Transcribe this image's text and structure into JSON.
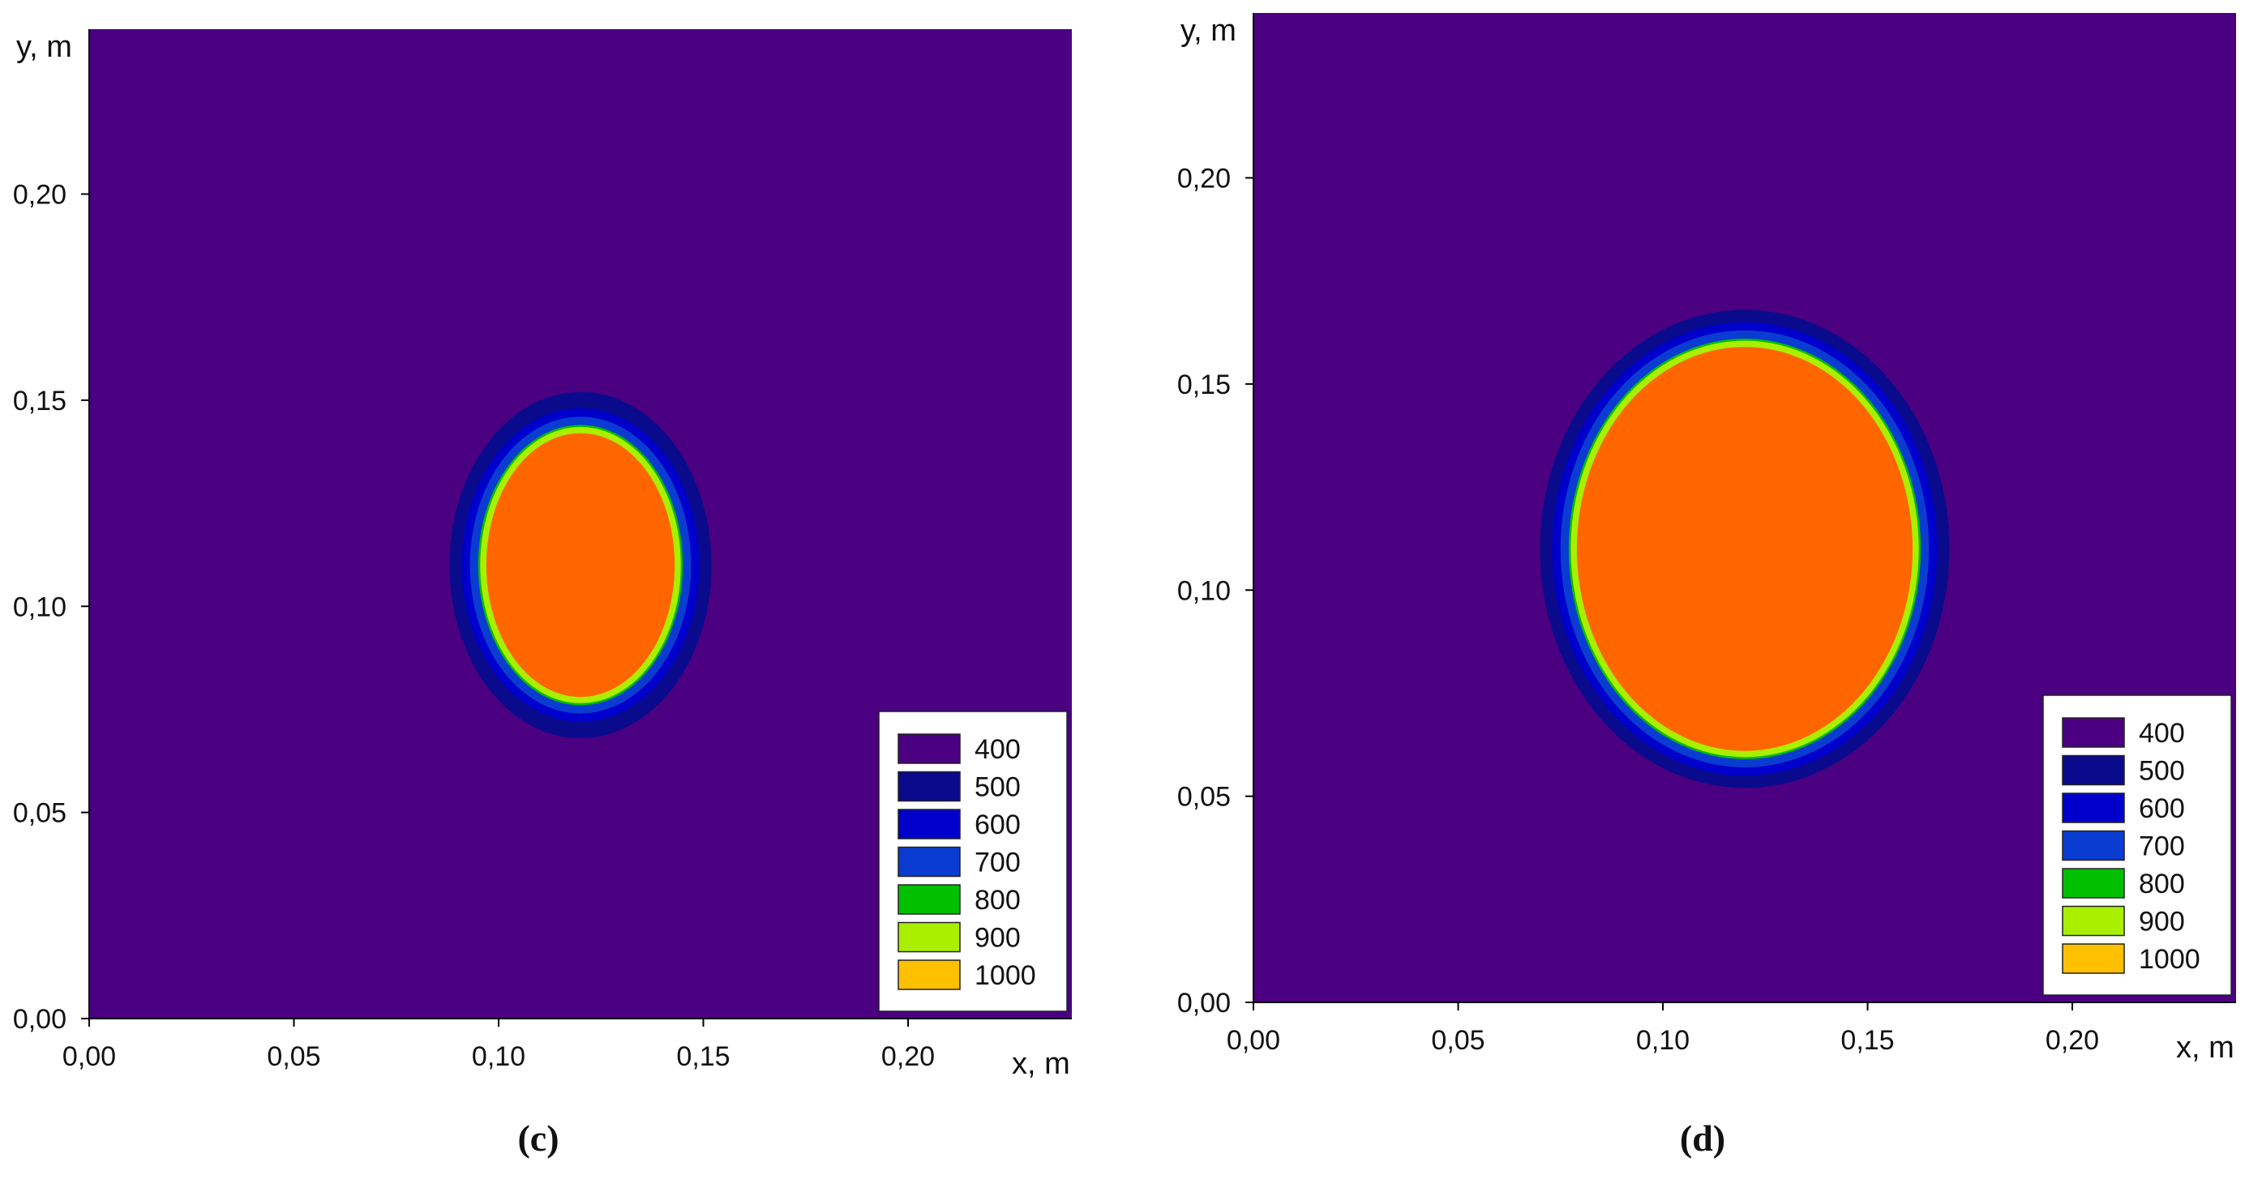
{
  "chart_data": [
    {
      "type": "heatmap",
      "panel_label": "(c)",
      "xlabel": "x, m",
      "ylabel": "y, m",
      "xlim": [
        0,
        0.24
      ],
      "ylim": [
        0,
        0.24
      ],
      "x_ticks": [
        "0,00",
        "0,05",
        "0,10",
        "0,15",
        "0,20"
      ],
      "y_ticks": [
        "0,00",
        "0,05",
        "0,10",
        "0,15",
        "0,20"
      ],
      "background_level": 400,
      "center": [
        0.12,
        0.11
      ],
      "contours": [
        {
          "level": 500,
          "semi_axis_x": 0.032,
          "semi_axis_y": 0.042
        },
        {
          "level": 600,
          "semi_axis_x": 0.029,
          "semi_axis_y": 0.038
        },
        {
          "level": 700,
          "semi_axis_x": 0.027,
          "semi_axis_y": 0.036
        },
        {
          "level": 800,
          "semi_axis_x": 0.025,
          "semi_axis_y": 0.034
        },
        {
          "level": 900,
          "semi_axis_x": 0.0245,
          "semi_axis_y": 0.0335
        },
        {
          "level": 1000,
          "semi_axis_x": 0.023,
          "semi_axis_y": 0.032,
          "color": "#ff6600"
        }
      ],
      "legend": {
        "placement": "bottom-right",
        "entries": [
          {
            "label": "400",
            "color": "#4b0082"
          },
          {
            "label": "500",
            "color": "#0a0a8c"
          },
          {
            "label": "600",
            "color": "#0000cc"
          },
          {
            "label": "700",
            "color": "#0a3cd2"
          },
          {
            "label": "800",
            "color": "#00c000"
          },
          {
            "label": "900",
            "color": "#aaee00"
          },
          {
            "label": "1000",
            "color": "#ffc000"
          }
        ]
      }
    },
    {
      "type": "heatmap",
      "panel_label": "(d)",
      "xlabel": "x, m",
      "ylabel": "y, m",
      "xlim": [
        0,
        0.24
      ],
      "ylim": [
        0,
        0.24
      ],
      "x_ticks": [
        "0,00",
        "0,05",
        "0,10",
        "0,15",
        "0,20"
      ],
      "y_ticks": [
        "0,00",
        "0,05",
        "0,10",
        "0,15",
        "0,20"
      ],
      "background_level": 400,
      "center": [
        0.12,
        0.11
      ],
      "contours": [
        {
          "level": 500,
          "semi_axis_x": 0.05,
          "semi_axis_y": 0.058
        },
        {
          "level": 600,
          "semi_axis_x": 0.047,
          "semi_axis_y": 0.055
        },
        {
          "level": 700,
          "semi_axis_x": 0.045,
          "semi_axis_y": 0.053
        },
        {
          "level": 800,
          "semi_axis_x": 0.043,
          "semi_axis_y": 0.051
        },
        {
          "level": 900,
          "semi_axis_x": 0.0425,
          "semi_axis_y": 0.0505
        },
        {
          "level": 1000,
          "semi_axis_x": 0.041,
          "semi_axis_y": 0.049,
          "color": "#ff6600"
        }
      ],
      "legend": {
        "placement": "bottom-right",
        "entries": [
          {
            "label": "400",
            "color": "#4b0082"
          },
          {
            "label": "500",
            "color": "#0a0a8c"
          },
          {
            "label": "600",
            "color": "#0000cc"
          },
          {
            "label": "700",
            "color": "#0a3cd2"
          },
          {
            "label": "800",
            "color": "#00c000"
          },
          {
            "label": "900",
            "color": "#aaee00"
          },
          {
            "label": "1000",
            "color": "#ffc000"
          }
        ]
      }
    }
  ]
}
